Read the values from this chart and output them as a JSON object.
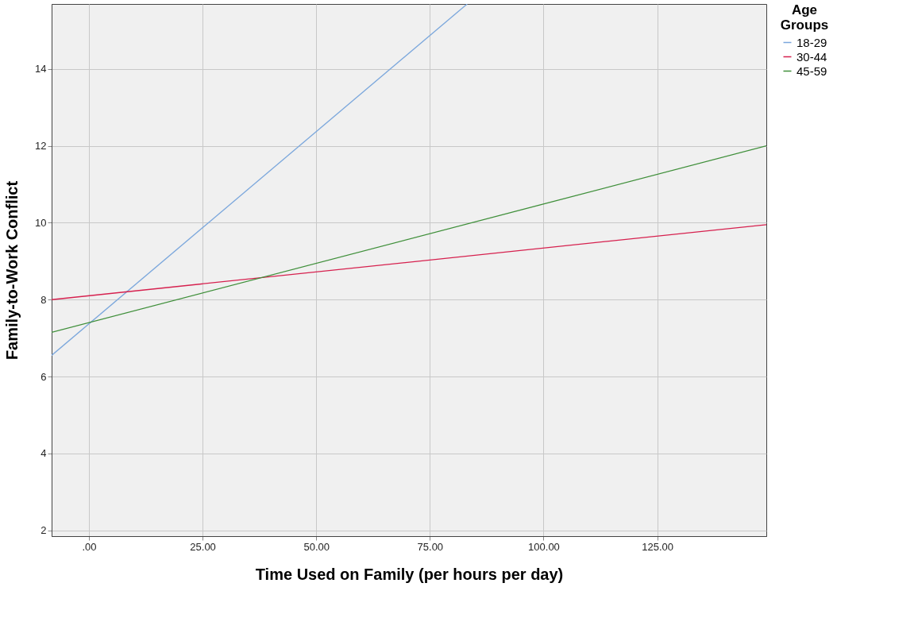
{
  "chart_data": {
    "type": "line",
    "xlabel": "Time Used on Family (per hours per day)",
    "ylabel": "Family-to-Work Conflict",
    "legend_title": "Age Groups",
    "series": [
      {
        "name": "18-29",
        "color": "#7ba7dc",
        "x": [
          -8.2,
          83.2
        ],
        "values": [
          6.55,
          15.69
        ]
      },
      {
        "name": "30-44",
        "color": "#d6204e",
        "x": [
          -8.2,
          149
        ],
        "values": [
          8.0,
          9.95
        ]
      },
      {
        "name": "45-59",
        "color": "#3f8f3a",
        "x": [
          -8.2,
          149
        ],
        "values": [
          7.15,
          12.0
        ]
      }
    ],
    "xlim": [
      -8.2,
      149
    ],
    "ylim": [
      1.85,
      15.69
    ],
    "xticks": [
      {
        "value": 0,
        "label": ".00"
      },
      {
        "value": 25,
        "label": "25.00"
      },
      {
        "value": 50,
        "label": "50.00"
      },
      {
        "value": 75,
        "label": "75.00"
      },
      {
        "value": 100,
        "label": "100.00"
      },
      {
        "value": 125,
        "label": "125.00"
      }
    ],
    "yticks": [
      2,
      4,
      6,
      8,
      10,
      12,
      14
    ],
    "grid": true,
    "legend": "top right",
    "marker": "none",
    "line_style": "solid"
  }
}
